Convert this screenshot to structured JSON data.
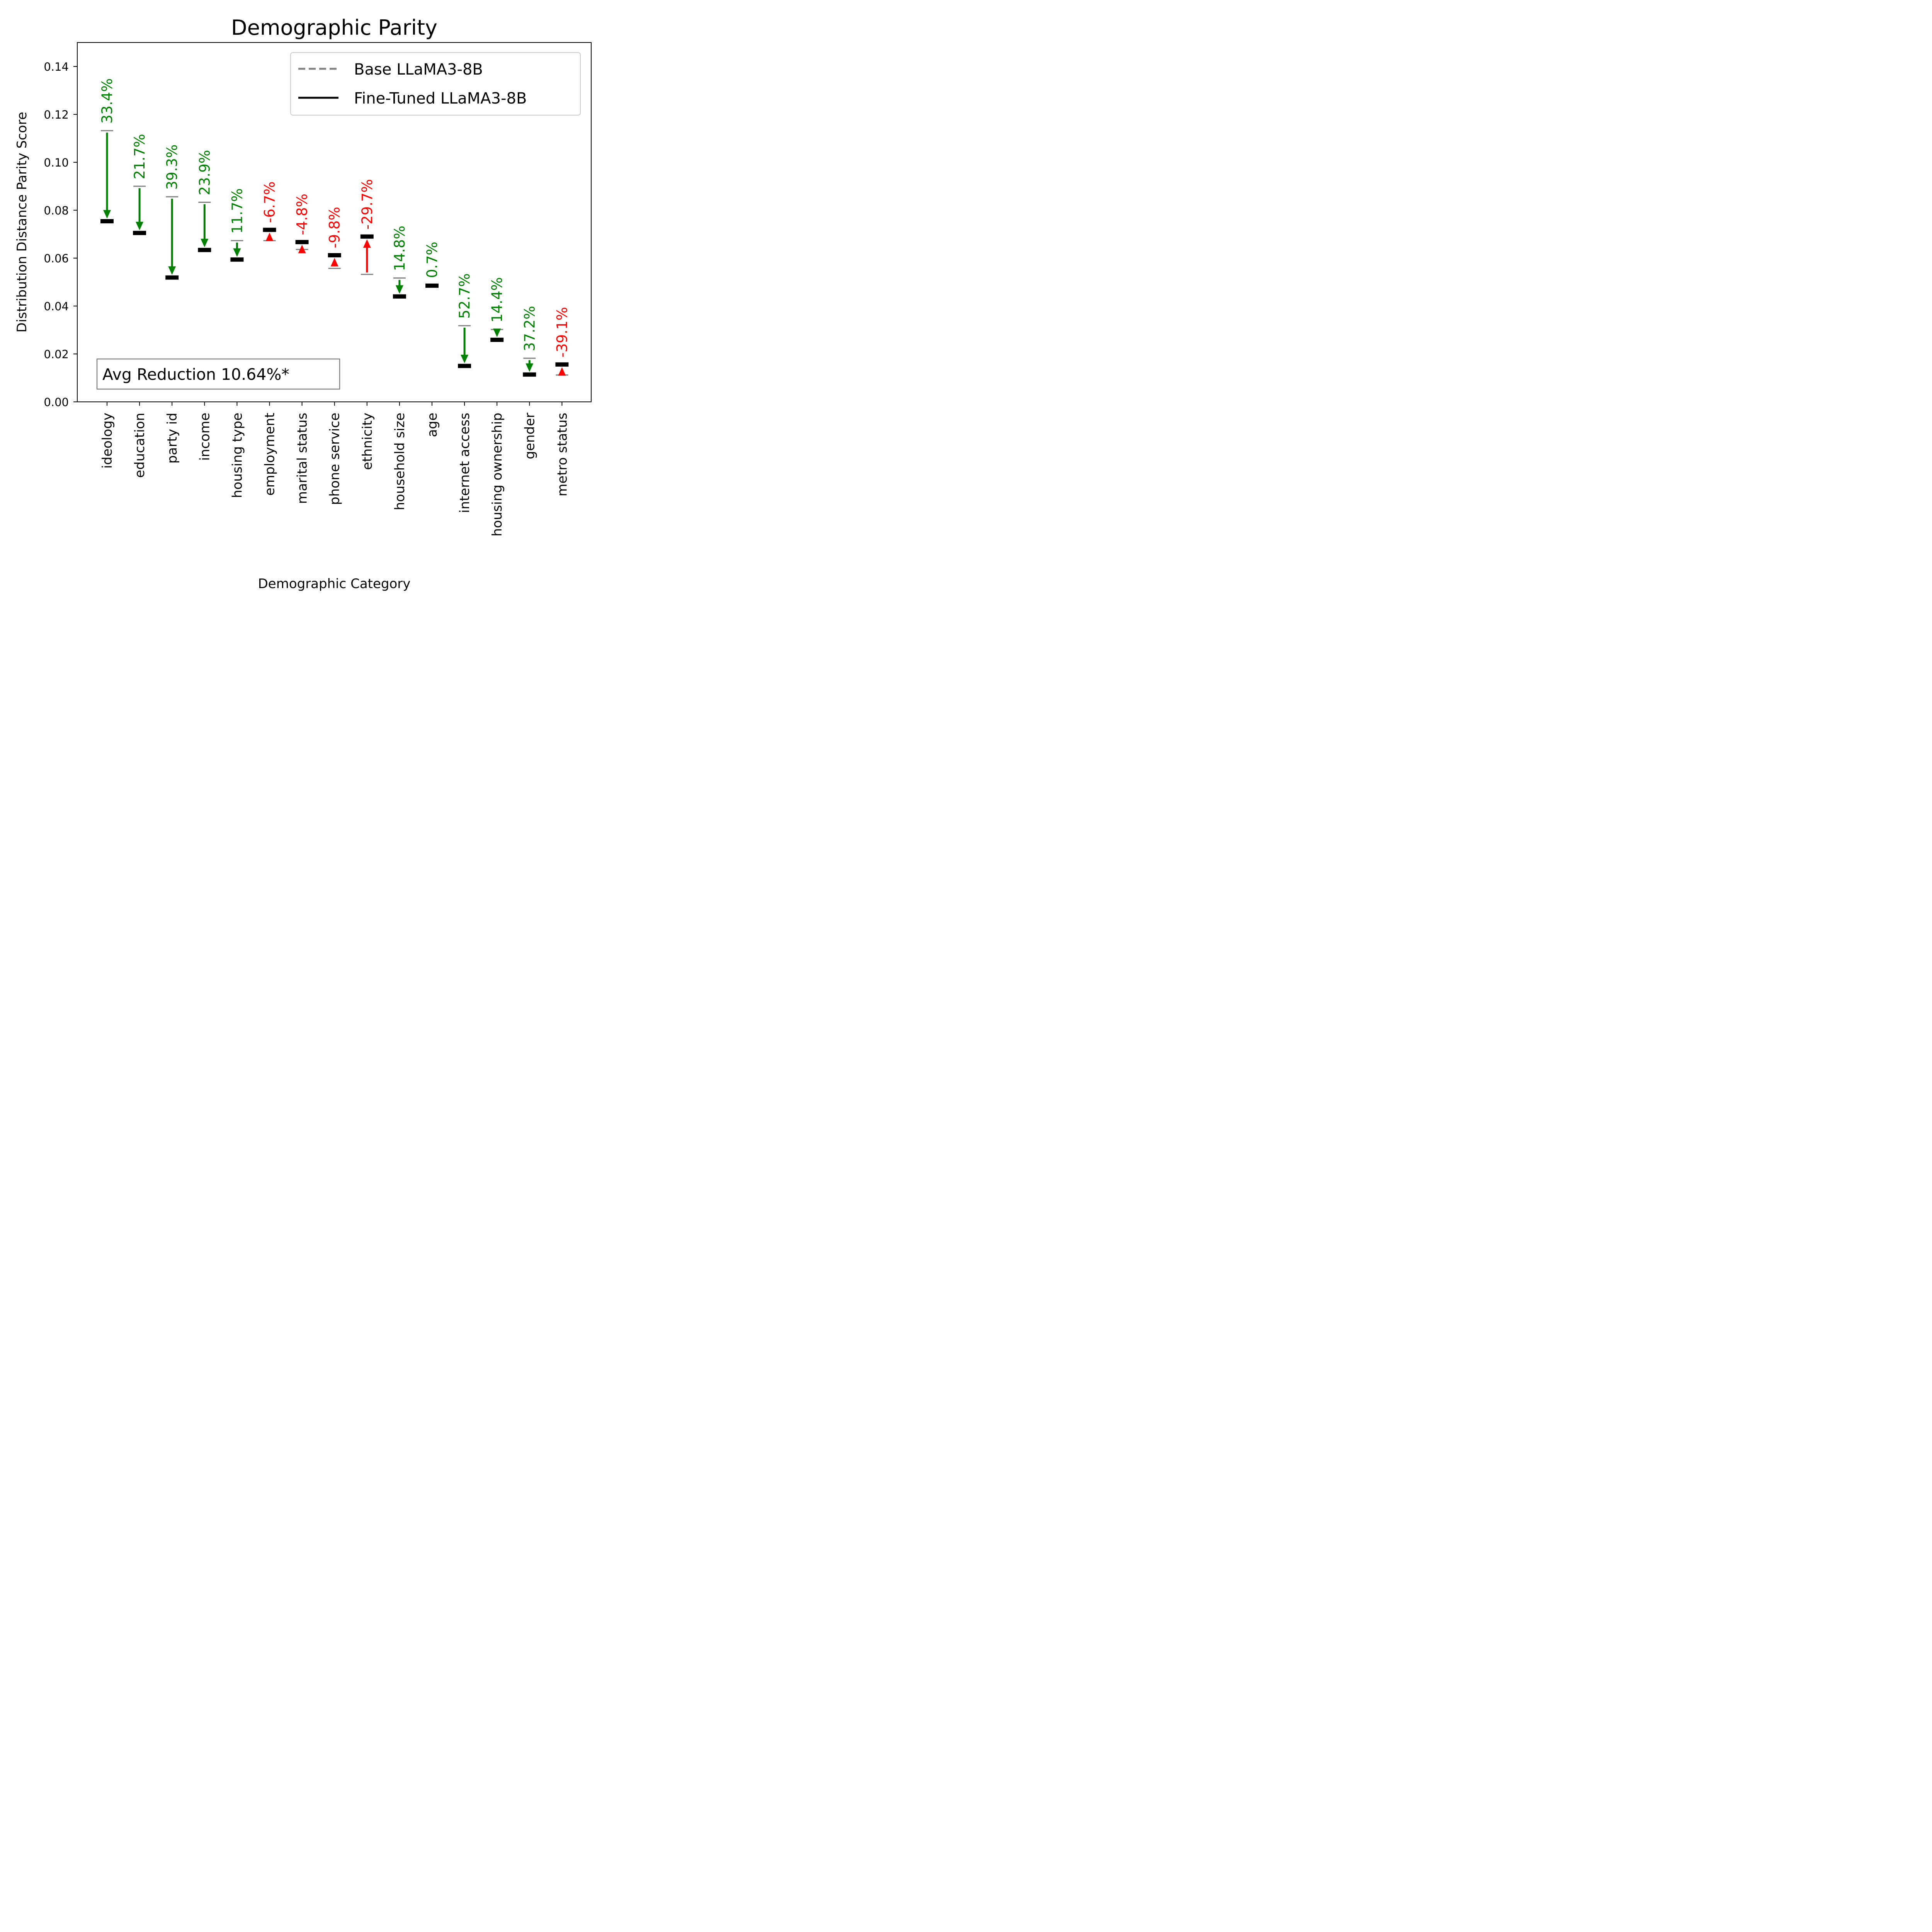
{
  "chart_data": {
    "type": "dumbbell",
    "title": "Demographic Parity",
    "xlabel": "Demographic Category",
    "ylabel": "Distribution Distance Parity Score",
    "ylim": [
      0,
      0.15
    ],
    "yticks": [
      "0.00",
      "0.02",
      "0.04",
      "0.06",
      "0.08",
      "0.10",
      "0.12",
      "0.14"
    ],
    "grid": false,
    "legend": {
      "placement": "top-right",
      "items": [
        {
          "label": "Base LLaMA3-8B",
          "style": "dashed",
          "color": "#808080"
        },
        {
          "label": "Fine-Tuned LLaMA3-8B",
          "style": "solid",
          "color": "#000000"
        }
      ]
    },
    "annotation": "Avg Reduction 10.64%*",
    "colors": {
      "improved": "#008000",
      "worsened": "#ff0000",
      "base": "#808080",
      "tuned": "#000000"
    },
    "categories": [
      "ideology",
      "education",
      "party id",
      "income",
      "housing type",
      "employment",
      "marital status",
      "phone service",
      "ethnicity",
      "household size",
      "age",
      "internet access",
      "housing ownership",
      "gender",
      "metro status"
    ],
    "series": [
      {
        "name": "Base LLaMA3-8B",
        "values": [
          0.1132,
          0.09,
          0.0856,
          0.0833,
          0.0673,
          0.0673,
          0.0636,
          0.0557,
          0.0532,
          0.0517,
          0.0488,
          0.0318,
          0.0302,
          0.0182,
          0.0112
        ]
      },
      {
        "name": "Fine-Tuned LLaMA3-8B",
        "values": [
          0.0754,
          0.0705,
          0.0519,
          0.0634,
          0.0594,
          0.0718,
          0.0667,
          0.0612,
          0.069,
          0.044,
          0.0485,
          0.015,
          0.0259,
          0.0114,
          0.0156
        ]
      }
    ],
    "change_labels": [
      "33.4%",
      "21.7%",
      "39.3%",
      "23.9%",
      "11.7%",
      "-6.7%",
      "-4.8%",
      "-9.8%",
      "-29.7%",
      "14.8%",
      "0.7%",
      "52.7%",
      "14.4%",
      "37.2%",
      "-39.1%"
    ]
  }
}
